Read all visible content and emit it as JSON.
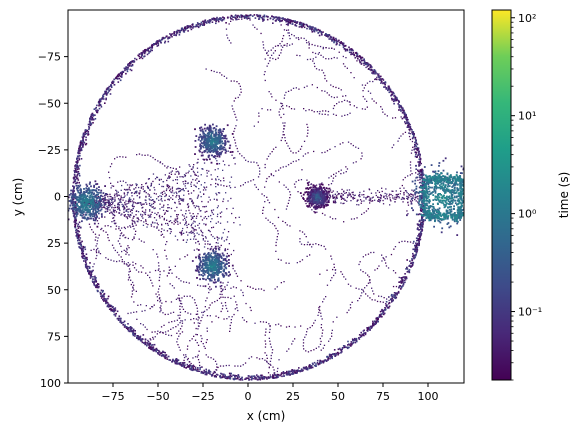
{
  "chart_data": {
    "type": "heatmap",
    "title": "",
    "xlabel": "x (cm)",
    "ylabel": "y (cm)",
    "xlim": [
      -100,
      120
    ],
    "ylim": [
      100,
      -100
    ],
    "y_inverted": true,
    "xticks": [
      -75,
      -50,
      -25,
      0,
      25,
      50,
      75,
      100
    ],
    "xtick_labels": [
      "−75",
      "−50",
      "−25",
      "0",
      "25",
      "50",
      "75",
      "100"
    ],
    "yticks": [
      -75,
      -50,
      -25,
      0,
      25,
      50,
      75,
      100
    ],
    "ytick_labels": [
      "−75",
      "−50",
      "−25",
      "0",
      "25",
      "50",
      "75",
      "100"
    ],
    "colormap": "viridis",
    "colorbar": {
      "label": "time (s)",
      "scale": "log",
      "range": [
        0.02,
        120
      ],
      "major_ticks": [
        0.1,
        1,
        10,
        100
      ],
      "major_tick_labels": [
        "10⁻¹",
        "10⁰",
        "10¹",
        "10²"
      ]
    },
    "arena": {
      "shape": "circle",
      "center": [
        0,
        0
      ],
      "radius": 98
    },
    "hotspots": [
      {
        "x": -20,
        "y": -30,
        "spread": 4,
        "peak_time_s": 1.5
      },
      {
        "x": -20,
        "y": 37,
        "spread": 4,
        "peak_time_s": 2.0
      },
      {
        "x": 38,
        "y": 0,
        "spread": 3,
        "peak_time_s": 0.5
      },
      {
        "x": -90,
        "y": 3,
        "spread": 5,
        "peak_time_s": 2.0
      },
      {
        "x": 108,
        "y": 0,
        "spread": 8,
        "peak_time_s": 3.0
      }
    ],
    "side_box": {
      "x_range": [
        98,
        118
      ],
      "y_range": [
        -10,
        10
      ],
      "typical_time_s": 1.5
    },
    "grid": false
  }
}
